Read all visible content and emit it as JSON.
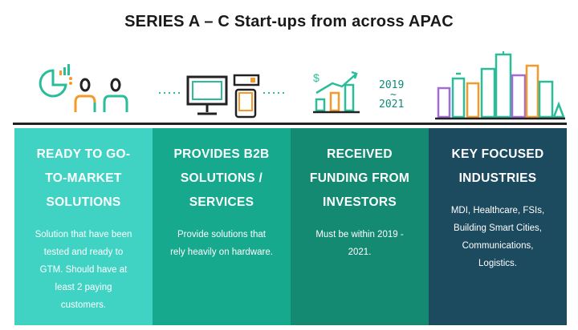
{
  "title": "SERIES A – C Start-ups from across APAC",
  "colors": {
    "teal_light": "#40d3c4",
    "teal_mid": "#16a98e",
    "teal_dark": "#158a73",
    "navy": "#1c4a5e",
    "icon_orange": "#f39a2a",
    "icon_green": "#2bbd9a",
    "icon_purple": "#a26bd6"
  },
  "icons": [
    {
      "name": "market-people-icon"
    },
    {
      "name": "devices-icon"
    },
    {
      "name": "funding-growth-icon",
      "years": [
        "2019",
        "~",
        "2021"
      ]
    },
    {
      "name": "city-skyline-icon"
    }
  ],
  "panels": [
    {
      "heading": [
        "READY TO GO-",
        "TO-MARKET",
        "SOLUTIONS"
      ],
      "body": [
        "Solution that have been",
        "tested and ready to",
        "GTM. Should have at",
        "least 2 paying",
        "customers."
      ]
    },
    {
      "heading": [
        "PROVIDES B2B",
        "SOLUTIONS /",
        "SERVICES"
      ],
      "body": [
        "Provide solutions that",
        "rely heavily on hardware."
      ]
    },
    {
      "heading": [
        "RECEIVED",
        "FUNDING FROM",
        "INVESTORS"
      ],
      "body": [
        "Must be within 2019 -",
        "2021."
      ]
    },
    {
      "heading": [
        "KEY FOCUSED",
        "INDUSTRIES"
      ],
      "body": [
        "MDI, Healthcare, FSIs,",
        "Building Smart Cities,",
        "Communications,",
        "Logistics."
      ]
    }
  ]
}
